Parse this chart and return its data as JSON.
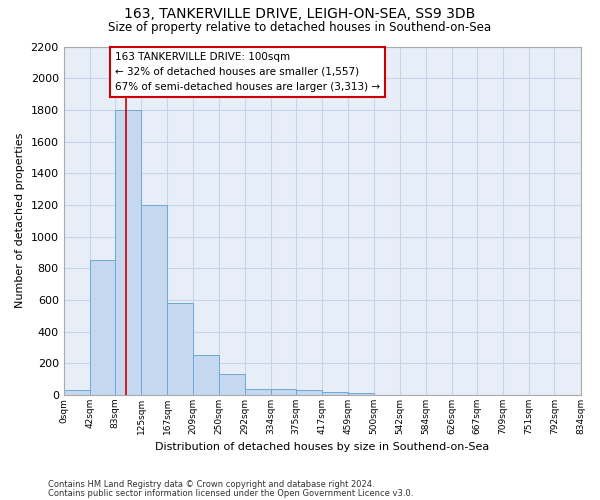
{
  "title_line1": "163, TANKERVILLE DRIVE, LEIGH-ON-SEA, SS9 3DB",
  "title_line2": "Size of property relative to detached houses in Southend-on-Sea",
  "xlabel": "Distribution of detached houses by size in Southend-on-Sea",
  "ylabel": "Number of detached properties",
  "bin_edges": [
    0,
    42,
    83,
    125,
    167,
    209,
    250,
    292,
    334,
    375,
    417,
    459,
    500,
    542,
    584,
    626,
    667,
    709,
    751,
    792,
    834
  ],
  "bin_labels": [
    "0sqm",
    "42sqm",
    "83sqm",
    "125sqm",
    "167sqm",
    "209sqm",
    "250sqm",
    "292sqm",
    "334sqm",
    "375sqm",
    "417sqm",
    "459sqm",
    "500sqm",
    "542sqm",
    "584sqm",
    "626sqm",
    "667sqm",
    "709sqm",
    "751sqm",
    "792sqm",
    "834sqm"
  ],
  "counts": [
    30,
    850,
    1800,
    1200,
    580,
    255,
    130,
    40,
    40,
    30,
    20,
    15,
    0,
    0,
    0,
    0,
    0,
    0,
    0,
    0
  ],
  "bar_color": "#c5d8f0",
  "bar_edge_color": "#6aaad4",
  "property_value": 100,
  "red_line_color": "#cc0000",
  "annotation_text": "163 TANKERVILLE DRIVE: 100sqm\n← 32% of detached houses are smaller (1,557)\n67% of semi-detached houses are larger (3,313) →",
  "annotation_box_edge": "#cc0000",
  "ylim": [
    0,
    2200
  ],
  "yticks": [
    0,
    200,
    400,
    600,
    800,
    1000,
    1200,
    1400,
    1600,
    1800,
    2000,
    2200
  ],
  "footnote_line1": "Contains HM Land Registry data © Crown copyright and database right 2024.",
  "footnote_line2": "Contains public sector information licensed under the Open Government Licence v3.0.",
  "bg_color": "#e8eef8",
  "grid_color": "#c8d4e8"
}
